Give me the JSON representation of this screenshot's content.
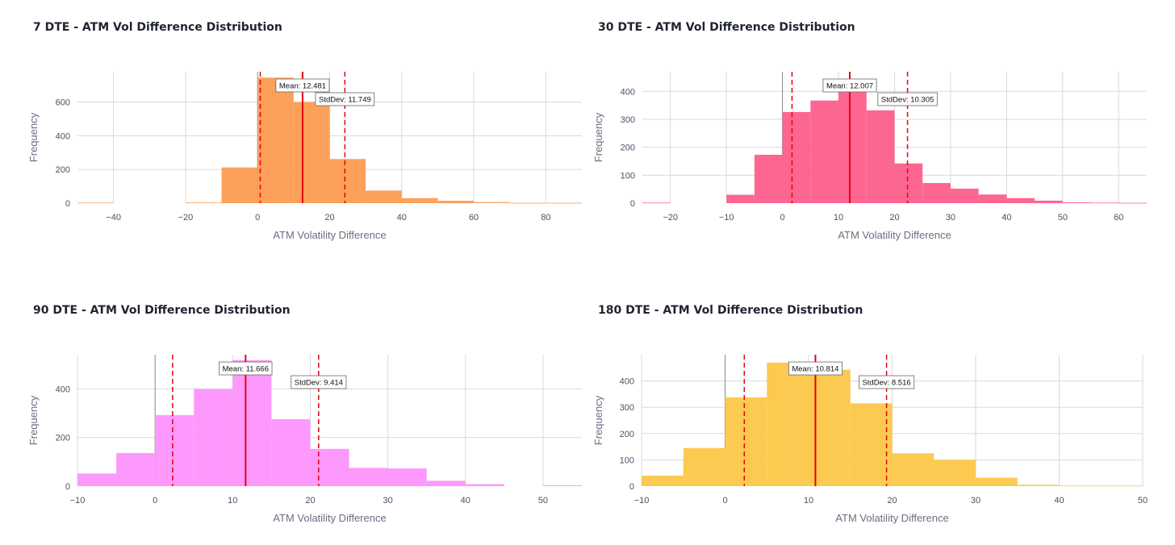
{
  "chart_data": [
    {
      "type": "bar",
      "title": "7 DTE - ATM Vol Difference Distribution",
      "xlabel": "ATM Volatility Difference",
      "ylabel": "Frequency",
      "color": "#fca05a",
      "xlim": [
        -50,
        90
      ],
      "ylim": [
        0,
        780
      ],
      "xticks": [
        -40,
        -20,
        0,
        20,
        40,
        60,
        80
      ],
      "xtick_labels": [
        "−40",
        "−20",
        "0",
        "20",
        "40",
        "60",
        "80"
      ],
      "yticks": [
        0,
        200,
        400,
        600
      ],
      "bins": [
        {
          "x0": -50,
          "x1": -40,
          "count": 3
        },
        {
          "x0": -40,
          "x1": -30,
          "count": 0
        },
        {
          "x0": -30,
          "x1": -20,
          "count": 0
        },
        {
          "x0": -20,
          "x1": -10,
          "count": 4
        },
        {
          "x0": -10,
          "x1": 0,
          "count": 212
        },
        {
          "x0": 0,
          "x1": 10,
          "count": 745
        },
        {
          "x0": 10,
          "x1": 20,
          "count": 600
        },
        {
          "x0": 20,
          "x1": 30,
          "count": 262
        },
        {
          "x0": 30,
          "x1": 40,
          "count": 75
        },
        {
          "x0": 40,
          "x1": 50,
          "count": 30
        },
        {
          "x0": 50,
          "x1": 60,
          "count": 14
        },
        {
          "x0": 60,
          "x1": 70,
          "count": 6
        },
        {
          "x0": 70,
          "x1": 80,
          "count": 2
        },
        {
          "x0": 80,
          "x1": 90,
          "count": 2
        }
      ],
      "mean": 12.481,
      "stddev": 11.749,
      "mean_label": "Mean: 12.481",
      "stddev_label": "StdDev: 11.749"
    },
    {
      "type": "bar",
      "title": "30 DTE - ATM Vol Difference Distribution",
      "xlabel": "ATM Volatility Difference",
      "ylabel": "Frequency",
      "color": "#fd6690",
      "xlim": [
        -25,
        65
      ],
      "ylim": [
        0,
        470
      ],
      "xticks": [
        -20,
        -10,
        0,
        10,
        20,
        30,
        40,
        50,
        60
      ],
      "xtick_labels": [
        "−20",
        "−10",
        "0",
        "10",
        "20",
        "30",
        "40",
        "50",
        "60"
      ],
      "yticks": [
        0,
        100,
        200,
        300,
        400
      ],
      "bins": [
        {
          "x0": -25,
          "x1": -20,
          "count": 2
        },
        {
          "x0": -20,
          "x1": -15,
          "count": 0
        },
        {
          "x0": -15,
          "x1": -10,
          "count": 0
        },
        {
          "x0": -10,
          "x1": -5,
          "count": 30
        },
        {
          "x0": -5,
          "x1": 0,
          "count": 173
        },
        {
          "x0": 0,
          "x1": 5,
          "count": 326
        },
        {
          "x0": 5,
          "x1": 10,
          "count": 367
        },
        {
          "x0": 10,
          "x1": 15,
          "count": 443
        },
        {
          "x0": 15,
          "x1": 20,
          "count": 332
        },
        {
          "x0": 20,
          "x1": 25,
          "count": 142
        },
        {
          "x0": 25,
          "x1": 30,
          "count": 72
        },
        {
          "x0": 30,
          "x1": 35,
          "count": 52
        },
        {
          "x0": 35,
          "x1": 40,
          "count": 31
        },
        {
          "x0": 40,
          "x1": 45,
          "count": 18
        },
        {
          "x0": 45,
          "x1": 50,
          "count": 9
        },
        {
          "x0": 50,
          "x1": 55,
          "count": 3
        },
        {
          "x0": 55,
          "x1": 60,
          "count": 2
        },
        {
          "x0": 60,
          "x1": 65,
          "count": 1
        }
      ],
      "mean": 12.007,
      "stddev": 10.305,
      "mean_label": "Mean: 12.007",
      "stddev_label": "StdDev: 10.305"
    },
    {
      "type": "bar",
      "title": "90 DTE - ATM Vol Difference Distribution",
      "xlabel": "ATM Volatility Difference",
      "ylabel": "Frequency",
      "color": "#fd99fd",
      "xlim": [
        -10,
        55
      ],
      "ylim": [
        0,
        540
      ],
      "xticks": [
        -10,
        0,
        10,
        20,
        30,
        40,
        50
      ],
      "xtick_labels": [
        "−10",
        "0",
        "10",
        "20",
        "30",
        "40",
        "50"
      ],
      "yticks": [
        0,
        200,
        400
      ],
      "bins": [
        {
          "x0": -10,
          "x1": -5,
          "count": 52
        },
        {
          "x0": -5,
          "x1": 0,
          "count": 136
        },
        {
          "x0": 0,
          "x1": 5,
          "count": 292
        },
        {
          "x0": 5,
          "x1": 10,
          "count": 399
        },
        {
          "x0": 10,
          "x1": 15,
          "count": 518
        },
        {
          "x0": 15,
          "x1": 20,
          "count": 275
        },
        {
          "x0": 20,
          "x1": 25,
          "count": 153
        },
        {
          "x0": 25,
          "x1": 30,
          "count": 75
        },
        {
          "x0": 30,
          "x1": 35,
          "count": 73
        },
        {
          "x0": 35,
          "x1": 40,
          "count": 22
        },
        {
          "x0": 40,
          "x1": 45,
          "count": 8
        },
        {
          "x0": 45,
          "x1": 50,
          "count": 0
        },
        {
          "x0": 50,
          "x1": 55,
          "count": 3
        }
      ],
      "mean": 11.666,
      "stddev": 9.414,
      "mean_label": "Mean: 11.666",
      "stddev_label": "StdDev: 9.414"
    },
    {
      "type": "bar",
      "title": "180 DTE - ATM Vol Difference Distribution",
      "xlabel": "ATM Volatility Difference",
      "ylabel": "Frequency",
      "color": "#fcca50",
      "xlim": [
        -10,
        50
      ],
      "ylim": [
        0,
        500
      ],
      "xticks": [
        -10,
        0,
        10,
        20,
        30,
        40,
        50
      ],
      "xtick_labels": [
        "−10",
        "0",
        "10",
        "20",
        "30",
        "40",
        "50"
      ],
      "yticks": [
        0,
        100,
        200,
        300,
        400
      ],
      "bins": [
        {
          "x0": -10,
          "x1": -5,
          "count": 40
        },
        {
          "x0": -5,
          "x1": 0,
          "count": 145
        },
        {
          "x0": 0,
          "x1": 5,
          "count": 338
        },
        {
          "x0": 5,
          "x1": 10,
          "count": 470
        },
        {
          "x0": 10,
          "x1": 15,
          "count": 443
        },
        {
          "x0": 15,
          "x1": 20,
          "count": 315
        },
        {
          "x0": 20,
          "x1": 25,
          "count": 125
        },
        {
          "x0": 25,
          "x1": 30,
          "count": 100
        },
        {
          "x0": 30,
          "x1": 35,
          "count": 32
        },
        {
          "x0": 35,
          "x1": 40,
          "count": 5
        },
        {
          "x0": 40,
          "x1": 45,
          "count": 2
        },
        {
          "x0": 45,
          "x1": 50,
          "count": 2
        }
      ],
      "mean": 10.814,
      "stddev": 8.516,
      "mean_label": "Mean: 10.814",
      "stddev_label": "StdDev: 8.516"
    }
  ]
}
